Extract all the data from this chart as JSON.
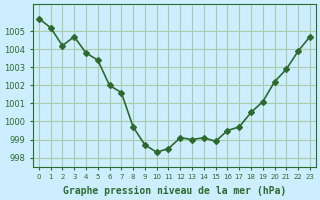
{
  "x": [
    0,
    1,
    2,
    3,
    4,
    5,
    6,
    7,
    8,
    9,
    10,
    11,
    12,
    13,
    14,
    15,
    16,
    17,
    18,
    19,
    20,
    21,
    22,
    23
  ],
  "y": [
    1005.7,
    1005.2,
    1004.2,
    1004.7,
    1003.8,
    1003.4,
    1002.0,
    1001.6,
    999.7,
    998.7,
    998.3,
    998.5,
    999.1,
    999.0,
    999.1,
    998.9,
    999.5,
    999.7,
    1000.5,
    1001.1,
    1002.2,
    1002.9,
    1003.9,
    1004.7
  ],
  "line_color": "#2d6a2d",
  "marker": "D",
  "marker_size": 3,
  "bg_color": "#cceeff",
  "grid_color": "#aaccaa",
  "xlabel": "Graphe pression niveau de la mer (hPa)",
  "xlabel_color": "#2d6a2d",
  "xtick_labels": [
    "0",
    "1",
    "2",
    "3",
    "4",
    "5",
    "6",
    "7",
    "8",
    "9",
    "10",
    "11",
    "12",
    "13",
    "14",
    "15",
    "16",
    "17",
    "18",
    "19",
    "20",
    "21",
    "22",
    "23"
  ],
  "ylim": [
    997.5,
    1006.5
  ],
  "yticks": [
    998,
    999,
    1000,
    1001,
    1002,
    1003,
    1004,
    1005
  ],
  "tick_color": "#2d6a2d",
  "spine_color": "#2d6a2d"
}
